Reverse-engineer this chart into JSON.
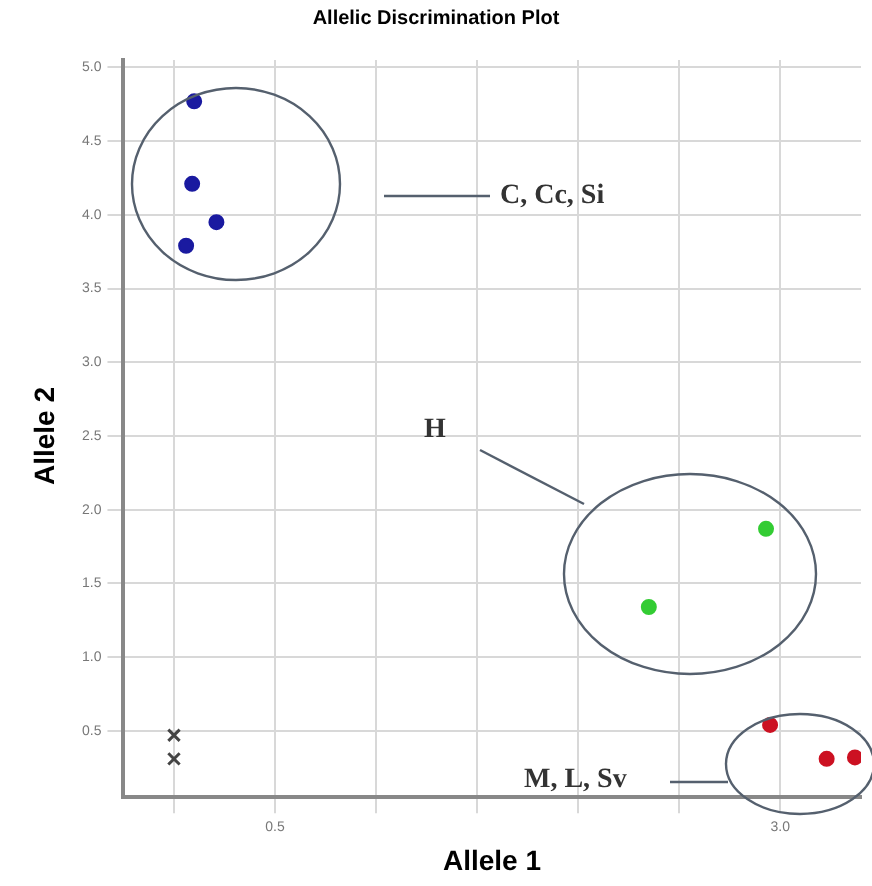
{
  "chart_data": {
    "type": "scatter",
    "title": "Allelic Discrimination Plot",
    "xlabel": "Allele 1",
    "ylabel": "Allele 2",
    "xlim": [
      -0.25,
      3.4
    ],
    "ylim": [
      0.05,
      5.05
    ],
    "xticks": [
      {
        "value": 0,
        "label": null
      },
      0.5,
      {
        "value": 1,
        "label": null
      },
      {
        "value": 1.5,
        "label": null
      },
      {
        "value": 2,
        "label": null
      },
      {
        "value": 2.5,
        "label": null
      },
      {
        "value": 3,
        "label": "3.0"
      }
    ],
    "yticks": [
      0.5,
      {
        "value": 1,
        "label": "1.0"
      },
      1.5,
      {
        "value": 2,
        "label": "2.0"
      },
      2.5,
      {
        "value": 3,
        "label": "3.0"
      },
      3.5,
      {
        "value": 4,
        "label": "4.0"
      },
      4.5,
      {
        "value": 5,
        "label": "5.0"
      }
    ],
    "grid": true,
    "marker": "circle",
    "series": [
      {
        "color": "#1a1aa0",
        "x": [
          0.1,
          0.09,
          0.21,
          0.06
        ],
        "values": [
          4.77,
          4.21,
          3.95,
          3.79
        ]
      },
      {
        "color": "#33cc33",
        "x": [
          2.93,
          2.35
        ],
        "values": [
          1.87,
          1.34
        ]
      },
      {
        "color": "#cc1122",
        "x": [
          2.95,
          3.23,
          3.37
        ],
        "values": [
          0.54,
          0.31,
          0.32
        ]
      },
      {
        "color": "#444444",
        "marker": "cross",
        "x": [
          0.0,
          0.0
        ],
        "values": [
          0.47,
          0.31
        ]
      }
    ],
    "annotations": [
      "C, Cc, Si",
      "H",
      "M, L, Sv"
    ]
  }
}
